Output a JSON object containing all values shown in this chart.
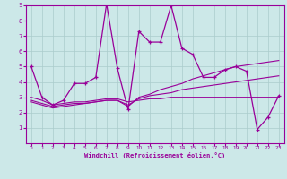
{
  "xlabel": "Windchill (Refroidissement éolien,°C)",
  "x_values": [
    0,
    1,
    2,
    3,
    4,
    5,
    6,
    7,
    8,
    9,
    10,
    11,
    12,
    13,
    14,
    15,
    16,
    17,
    18,
    19,
    20,
    21,
    22,
    23
  ],
  "main_y": [
    5,
    3,
    2.5,
    2.8,
    3.9,
    3.9,
    4.3,
    9.1,
    4.9,
    2.2,
    7.3,
    6.6,
    6.6,
    9.0,
    6.2,
    5.8,
    4.3,
    4.3,
    4.8,
    5.0,
    4.7,
    0.9,
    1.7,
    3.1
  ],
  "line2_y": [
    3.0,
    2.8,
    2.5,
    2.6,
    2.7,
    2.7,
    2.8,
    2.9,
    2.9,
    2.7,
    2.8,
    2.9,
    2.9,
    3.0,
    3.0,
    3.0,
    3.0,
    3.0,
    3.0,
    3.0,
    3.0,
    3.0,
    3.0,
    3.0
  ],
  "line3_y": [
    2.8,
    2.6,
    2.4,
    2.5,
    2.6,
    2.6,
    2.7,
    2.8,
    2.8,
    2.5,
    2.9,
    3.1,
    3.2,
    3.3,
    3.5,
    3.6,
    3.7,
    3.8,
    3.9,
    4.0,
    4.1,
    4.2,
    4.3,
    4.4
  ],
  "line4_y": [
    2.7,
    2.5,
    2.3,
    2.4,
    2.5,
    2.6,
    2.7,
    2.8,
    2.8,
    2.4,
    3.0,
    3.2,
    3.5,
    3.7,
    3.9,
    4.2,
    4.4,
    4.6,
    4.8,
    5.0,
    5.1,
    5.2,
    5.3,
    5.4
  ],
  "line_color": "#990099",
  "bg_color": "#cce8e8",
  "grid_color": "#aacccc",
  "ylim": [
    0,
    9
  ],
  "xlim": [
    -0.5,
    23.5
  ]
}
